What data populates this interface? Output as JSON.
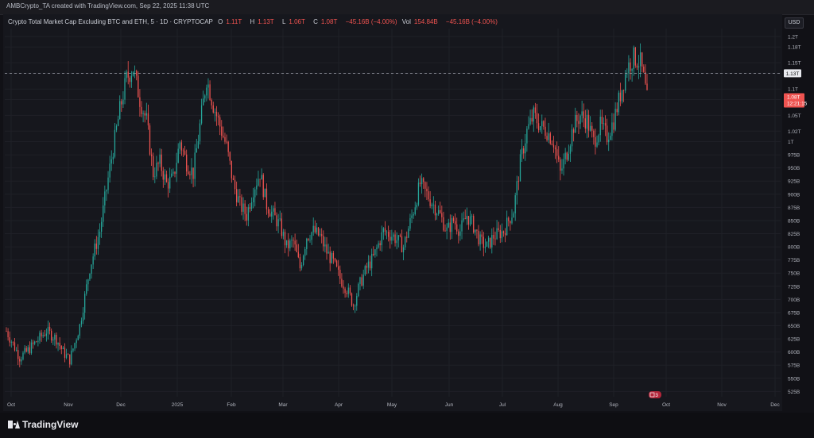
{
  "top_bar": {
    "text": "AMBCrypto_TA created with TradingView.com, Sep 22, 2025 11:38 UTC"
  },
  "legend": {
    "symbol": "Crypto Total Market Cap Excluding BTC and ETH, 5 · 1D · CRYPTOCAP",
    "open_label": "O",
    "open_value": "1.11T",
    "high_label": "H",
    "high_value": "1.13T",
    "low_label": "L",
    "low_value": "1.06T",
    "close_label": "C",
    "close_value": "1.08T",
    "change": "−45.16B (−4.00%)",
    "vol_label": "Vol",
    "vol_value": "154.84B",
    "vol_change": "−45.16B (−4.00%)"
  },
  "currency_button": "USD",
  "current_price_tag": "1.13T",
  "last_price_tag": {
    "price": "1.08T",
    "countdown": "12:21:15"
  },
  "event_badge": "3",
  "footer": {
    "brand": "TradingView"
  },
  "colors": {
    "up": "#26a69a",
    "down": "#ef5350",
    "background": "#16171d",
    "grid": "#1f2027",
    "price_line": "#9598a1"
  },
  "chart_data": {
    "type": "candlestick",
    "title": "Crypto Total Market Cap Excluding BTC and ETH",
    "ylabel": "",
    "xlabel": "",
    "y_ticks": [
      "1.2T",
      "1.18T",
      "1.15T",
      "1.13T",
      "1.1T",
      "1.08T",
      "1.05T",
      "1.02T",
      "1T",
      "975B",
      "950B",
      "925B",
      "900B",
      "875B",
      "850B",
      "825B",
      "800B",
      "775B",
      "750B",
      "725B",
      "700B",
      "675B",
      "650B",
      "625B",
      "600B",
      "575B",
      "550B",
      "525B"
    ],
    "x_ticks": [
      "Oct",
      "Nov",
      "Dec",
      "2025",
      "Feb",
      "Mar",
      "Apr",
      "May",
      "Jun",
      "Jul",
      "Aug",
      "Sep",
      "Oct",
      "Nov",
      "Dec"
    ],
    "ylim_billions": [
      515,
      1215
    ],
    "series_monthly_close_approx_billions": [
      {
        "month": "Oct 2024",
        "open": 640,
        "high": 655,
        "low": 570,
        "close": 600
      },
      {
        "month": "Nov 2024",
        "open": 600,
        "high": 1140,
        "low": 578,
        "close": 1080
      },
      {
        "month": "Dec 2024",
        "open": 1080,
        "high": 1160,
        "low": 880,
        "close": 950
      },
      {
        "month": "Jan 2025",
        "open": 950,
        "high": 1150,
        "low": 880,
        "close": 1030
      },
      {
        "month": "Feb 2025",
        "open": 1030,
        "high": 1040,
        "low": 745,
        "close": 850
      },
      {
        "month": "Mar 2025",
        "open": 850,
        "high": 900,
        "low": 720,
        "close": 780
      },
      {
        "month": "Apr 2025",
        "open": 780,
        "high": 830,
        "low": 665,
        "close": 790
      },
      {
        "month": "May 2025",
        "open": 790,
        "high": 960,
        "low": 780,
        "close": 900
      },
      {
        "month": "Jun 2025",
        "open": 900,
        "high": 920,
        "low": 760,
        "close": 820
      },
      {
        "month": "Jul 2025",
        "open": 820,
        "high": 1080,
        "low": 810,
        "close": 1050
      },
      {
        "month": "Aug 2025",
        "open": 1050,
        "high": 1090,
        "low": 925,
        "close": 1010
      },
      {
        "month": "Sep 2025",
        "open": 1010,
        "high": 1180,
        "low": 1000,
        "close": 1080
      }
    ],
    "price_line_billions": 1130,
    "last_close_billions": 1080
  }
}
